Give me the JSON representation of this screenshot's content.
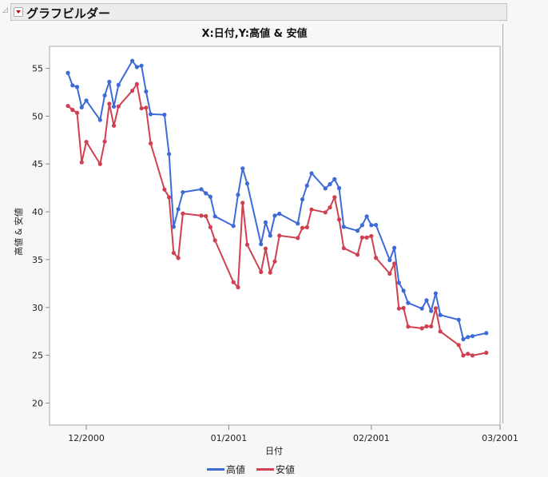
{
  "header": {
    "title": "グラフビルダー",
    "menu_icon": "red-triangle-menu-icon"
  },
  "colors": {
    "high": "#3e6ad8",
    "low": "#d04050"
  },
  "chart_data": {
    "type": "line",
    "title": "X:日付,Y:高値 & 安値",
    "xlabel": "日付",
    "ylabel": "高値 & 安値",
    "xlim": [
      "2000-11-23",
      "2001-03-01"
    ],
    "ylim": [
      17.7,
      57.3
    ],
    "xticks": [
      {
        "date": "2000-12-01",
        "label": "12/2000"
      },
      {
        "date": "2001-01-01",
        "label": "01/2001"
      },
      {
        "date": "2001-02-01",
        "label": "02/2001"
      },
      {
        "date": "2001-03-01",
        "label": "03/2001"
      }
    ],
    "yticks": [
      20,
      25,
      30,
      35,
      40,
      45,
      50,
      55
    ],
    "grid": false,
    "legend": "bottom",
    "x": [
      "2000-11-27",
      "2000-11-28",
      "2000-11-29",
      "2000-11-30",
      "2000-12-01",
      "2000-12-04",
      "2000-12-05",
      "2000-12-06",
      "2000-12-07",
      "2000-12-08",
      "2000-12-11",
      "2000-12-12",
      "2000-12-13",
      "2000-12-14",
      "2000-12-15",
      "2000-12-18",
      "2000-12-19",
      "2000-12-20",
      "2000-12-21",
      "2000-12-22",
      "2000-12-26",
      "2000-12-27",
      "2000-12-28",
      "2000-12-29",
      "2001-01-02",
      "2001-01-03",
      "2001-01-04",
      "2001-01-05",
      "2001-01-08",
      "2001-01-09",
      "2001-01-10",
      "2001-01-11",
      "2001-01-12",
      "2001-01-16",
      "2001-01-17",
      "2001-01-18",
      "2001-01-19",
      "2001-01-22",
      "2001-01-23",
      "2001-01-24",
      "2001-01-25",
      "2001-01-26",
      "2001-01-29",
      "2001-01-30",
      "2001-01-31",
      "2001-02-01",
      "2001-02-02",
      "2001-02-05",
      "2001-02-06",
      "2001-02-07",
      "2001-02-08",
      "2001-02-09",
      "2001-02-12",
      "2001-02-13",
      "2001-02-14",
      "2001-02-15",
      "2001-02-16",
      "2001-02-20",
      "2001-02-21",
      "2001-02-22",
      "2001-02-23",
      "2001-02-26"
    ],
    "series": [
      {
        "name": "高値",
        "color": "#3e6ad8",
        "values": [
          54.52,
          53.22,
          53.05,
          50.93,
          51.63,
          49.6,
          52.16,
          53.6,
          51.0,
          53.27,
          55.78,
          55.14,
          55.28,
          52.58,
          50.21,
          50.15,
          46.04,
          38.43,
          40.27,
          42.05,
          42.36,
          41.94,
          41.57,
          39.52,
          38.52,
          41.78,
          44.53,
          42.95,
          36.62,
          38.9,
          37.51,
          39.6,
          39.8,
          38.77,
          41.3,
          42.74,
          44.03,
          42.44,
          42.89,
          43.41,
          42.47,
          38.43,
          38.02,
          38.6,
          39.52,
          38.6,
          38.63,
          34.95,
          36.23,
          32.58,
          31.75,
          30.47,
          29.88,
          30.75,
          29.63,
          31.47,
          29.21,
          28.71,
          26.68,
          26.9,
          27.0,
          27.32
        ]
      },
      {
        "name": "安値",
        "color": "#d04050",
        "values": [
          51.07,
          50.66,
          50.35,
          45.17,
          47.31,
          45.0,
          47.34,
          51.3,
          49.01,
          51.02,
          52.66,
          53.35,
          50.82,
          50.88,
          47.15,
          42.33,
          41.52,
          35.7,
          35.17,
          39.82,
          39.6,
          39.55,
          38.4,
          37.01,
          32.64,
          32.11,
          40.94,
          36.56,
          33.7,
          36.15,
          33.64,
          34.81,
          37.51,
          37.26,
          38.32,
          38.38,
          40.24,
          39.94,
          40.46,
          41.52,
          39.19,
          36.2,
          35.51,
          37.31,
          37.31,
          37.46,
          35.18,
          33.53,
          34.59,
          29.88,
          29.94,
          27.99,
          27.82,
          28.02,
          28.02,
          29.91,
          27.49,
          26.07,
          24.98,
          25.15,
          24.98,
          25.26
        ]
      }
    ]
  }
}
